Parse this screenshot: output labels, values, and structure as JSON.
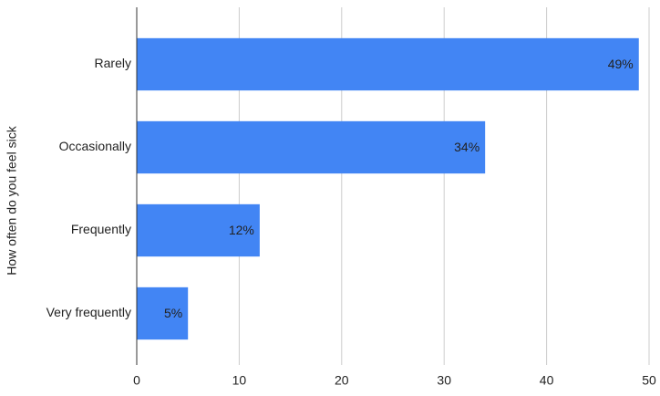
{
  "chart_data": {
    "type": "bar",
    "orientation": "horizontal",
    "y_label": "How often do you feel sick",
    "categories": [
      "Rarely",
      "Occasionally",
      "Frequently",
      "Very frequently"
    ],
    "values": [
      49,
      34,
      12,
      5
    ],
    "value_labels": [
      "49%",
      "34%",
      "12%",
      "5%"
    ],
    "color": "#4285f4",
    "xlim": [
      0,
      50
    ],
    "xticks": [
      0,
      10,
      20,
      30,
      40,
      50
    ],
    "grid": true
  }
}
